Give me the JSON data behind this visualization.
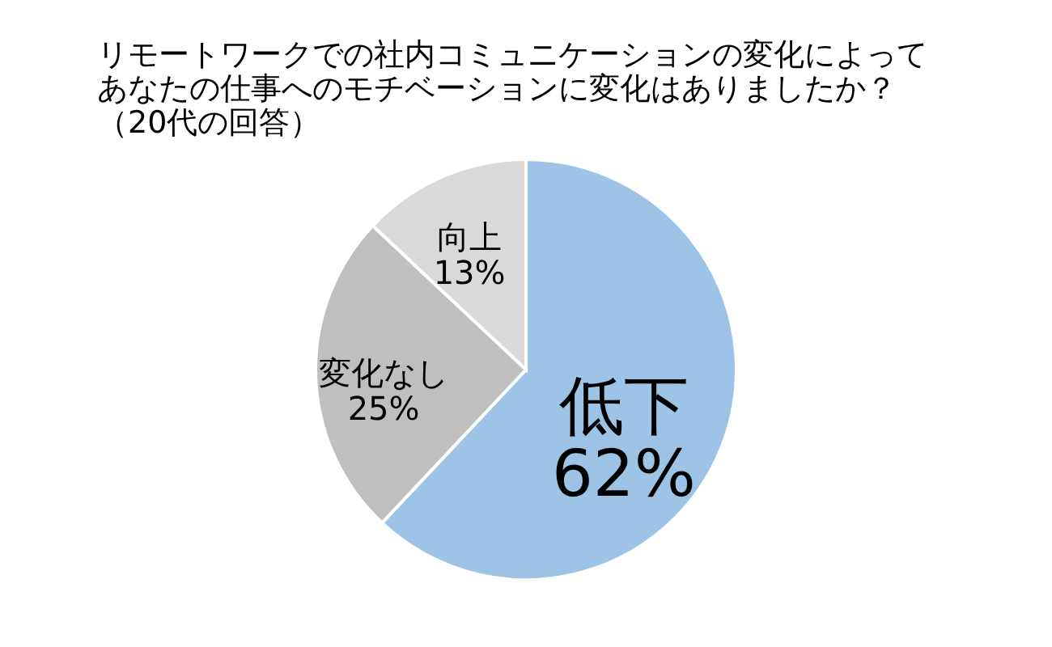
{
  "chart_data": {
    "type": "pie",
    "title": "リモートワークでの社内コミュニケーションの変化によってあなたの仕事へのモチベーションに変化はありましたか？",
    "subtitle": "（20代の回答）",
    "categories": [
      "低下",
      "変化なし",
      "向上"
    ],
    "values": [
      62,
      25,
      13
    ],
    "value_labels": [
      "62%",
      "25%",
      "13%"
    ],
    "colors": [
      "#9dc3e6",
      "#bfbfbf",
      "#d9d9d9"
    ]
  }
}
